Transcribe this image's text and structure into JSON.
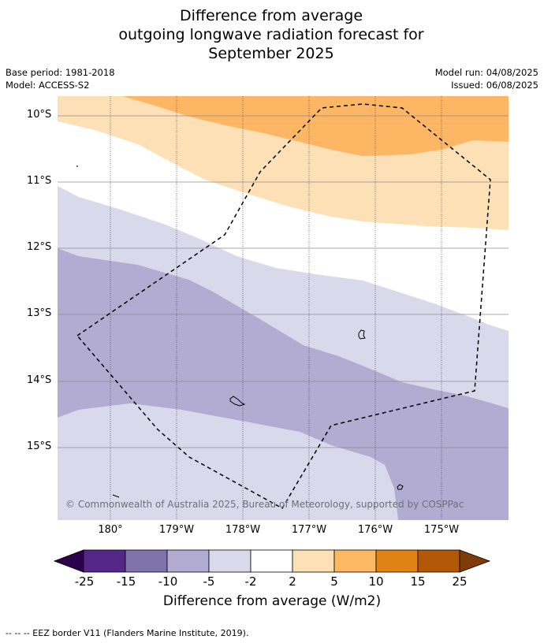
{
  "header": {
    "title_lines": [
      "Difference from average",
      "outgoing longwave radiation forecast for",
      "September 2025"
    ],
    "base_period": "Base period: 1981-2018",
    "model": "Model: ACCESS-S2",
    "model_run": "Model run: 04/08/2025",
    "issued": "Issued: 06/08/2025"
  },
  "map": {
    "lat_labels": [
      "10°S",
      "11°S",
      "12°S",
      "13°S",
      "14°S",
      "15°S"
    ],
    "lon_labels": [
      "180°",
      "179°W",
      "178°W",
      "177°W",
      "176°W",
      "175°W"
    ],
    "copyright": "© Commonwealth of Australia 2025, Bureau of Meteorology, supported by COSPPac",
    "colors": {
      "orange_high": "#fdb663",
      "orange_low": "#fee0b6",
      "neutral": "#ffffff",
      "purple_low": "#d8daeb",
      "purple_mid": "#b2abd2"
    }
  },
  "colorbar": {
    "ticks": [
      "-25",
      "-15",
      "-10",
      "-5",
      "-2",
      "2",
      "5",
      "10",
      "15",
      "25"
    ],
    "colors": [
      "#2d004b",
      "#542788",
      "#8073ac",
      "#b2abd2",
      "#d8daeb",
      "#ffffff",
      "#fee0b6",
      "#fdb863",
      "#e08214",
      "#b35806",
      "#7f3b08"
    ],
    "title": "Difference from average (W/m2)"
  },
  "footnote": "--  --  -- EEZ border V11 (Flanders Marine Institute, 2019)."
}
